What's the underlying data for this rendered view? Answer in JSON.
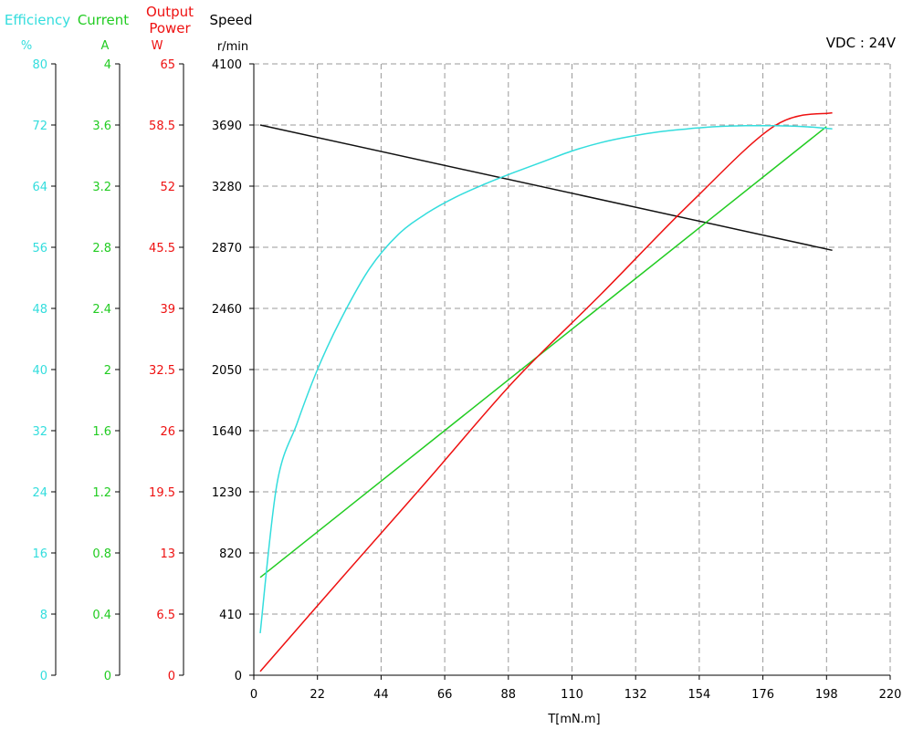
{
  "colors": {
    "efficiency": "#33dddd",
    "current": "#22cc22",
    "power": "#ee1111",
    "speed": "#111111",
    "grid": "#999999"
  },
  "headers": {
    "efficiency": {
      "title": "Efficiency",
      "unit": "%"
    },
    "current": {
      "title": "Current",
      "unit": "A"
    },
    "power": {
      "title_line1": "Output",
      "title_line2": "Power",
      "unit": "W"
    },
    "speed": {
      "title": "Speed",
      "unit": "r/min"
    }
  },
  "note": "VDC : 24V",
  "chart_data": {
    "type": "line",
    "xlabel": "T[mN.m]",
    "xlim": [
      0,
      220
    ],
    "x_ticks": [
      "0",
      "22",
      "44",
      "66",
      "88",
      "110",
      "132",
      "154",
      "176",
      "198",
      "220"
    ],
    "grid": true,
    "axes": {
      "efficiency": {
        "ylim": [
          0,
          80
        ],
        "ticks": [
          "80",
          "72",
          "64",
          "56",
          "48",
          "40",
          "32",
          "24",
          "16",
          "8",
          "0"
        ]
      },
      "current": {
        "ylim": [
          0,
          4
        ],
        "ticks": [
          "4",
          "3.6",
          "3.2",
          "2.8",
          "2.4",
          "2",
          "1.6",
          "1.2",
          "0.8",
          "0.4",
          "0"
        ]
      },
      "power": {
        "ylim": [
          0,
          65
        ],
        "ticks": [
          "65",
          "58.5",
          "52",
          "45.5",
          "39",
          "32.5",
          "26",
          "19.5",
          "13",
          "6.5",
          "0"
        ]
      },
      "speed": {
        "ylim": [
          0,
          4100
        ],
        "ticks": [
          "4100",
          "3690",
          "3280",
          "2870",
          "2460",
          "2050",
          "1640",
          "1230",
          "820",
          "410",
          "0"
        ]
      }
    },
    "series": [
      {
        "axis": "speed",
        "x": [
          2.2,
          200
        ],
        "y": [
          3690,
          2850
        ]
      },
      {
        "axis": "current",
        "x": [
          2.2,
          198
        ],
        "y": [
          0.64,
          3.59
        ]
      },
      {
        "axis": "power",
        "x": [
          2.2,
          30,
          60,
          90,
          120,
          150,
          180,
          200
        ],
        "y": [
          0.4,
          10.2,
          20.7,
          31.3,
          40.5,
          49.9,
          58.4,
          59.8
        ]
      },
      {
        "axis": "efficiency",
        "x": [
          2.2,
          8,
          15,
          22,
          30,
          40,
          50,
          60,
          70,
          80,
          90,
          100,
          110,
          120,
          130,
          140,
          150,
          160,
          170,
          180,
          190,
          200
        ],
        "y": [
          5.5,
          25,
          33,
          40,
          46.5,
          53.2,
          57.7,
          60.5,
          62.6,
          64.3,
          65.8,
          67.2,
          68.6,
          69.7,
          70.5,
          71.1,
          71.5,
          71.8,
          71.9,
          71.9,
          71.8,
          71.5
        ]
      }
    ]
  }
}
